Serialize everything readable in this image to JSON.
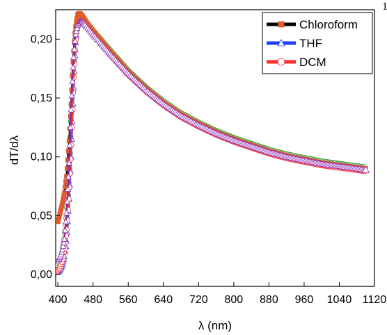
{
  "corner_text": "1",
  "chart_data": {
    "type": "scatter",
    "title": "",
    "xlabel": "λ (nm)",
    "ylabel": "dT/dλ",
    "xlim": [
      395,
      1120
    ],
    "ylim": [
      -0.01,
      0.225
    ],
    "xticks": [
      400,
      480,
      560,
      640,
      720,
      800,
      880,
      960,
      1040,
      1120
    ],
    "yticks": [
      0.0,
      0.05,
      0.1,
      0.15,
      0.2
    ],
    "ytick_labels": [
      "0,00",
      "0,05",
      "0,10",
      "0,15",
      "0,20"
    ],
    "grid": false,
    "legend_position": "top-right",
    "series": [
      {
        "name": "Chloroform",
        "color": "#000000",
        "marker": "square",
        "marker_color": "#e05a2b",
        "points": [
          [
            400,
            0.045
          ],
          [
            405,
            0.052
          ],
          [
            410,
            0.06
          ],
          [
            415,
            0.07
          ],
          [
            420,
            0.085
          ],
          [
            425,
            0.11
          ],
          [
            430,
            0.145
          ],
          [
            435,
            0.185
          ],
          [
            440,
            0.21
          ],
          [
            445,
            0.221
          ],
          [
            450,
            0.222
          ],
          [
            455,
            0.22
          ],
          [
            460,
            0.217
          ],
          [
            480,
            0.207
          ],
          [
            520,
            0.189
          ],
          [
            560,
            0.172
          ],
          [
            600,
            0.158
          ],
          [
            640,
            0.146
          ],
          [
            680,
            0.136
          ],
          [
            720,
            0.128
          ],
          [
            760,
            0.121
          ],
          [
            800,
            0.115
          ],
          [
            840,
            0.11
          ],
          [
            880,
            0.105
          ],
          [
            920,
            0.101
          ],
          [
            960,
            0.098
          ],
          [
            1000,
            0.095
          ],
          [
            1040,
            0.093
          ],
          [
            1080,
            0.091
          ],
          [
            1100,
            0.09
          ]
        ]
      },
      {
        "name": "THF",
        "color": "#1f3fff",
        "marker": "triangle",
        "marker_color": "#ffffff",
        "points": [
          [
            400,
            0.002
          ],
          [
            405,
            0.004
          ],
          [
            410,
            0.008
          ],
          [
            415,
            0.015
          ],
          [
            420,
            0.03
          ],
          [
            425,
            0.06
          ],
          [
            430,
            0.1
          ],
          [
            435,
            0.15
          ],
          [
            440,
            0.195
          ],
          [
            445,
            0.215
          ],
          [
            450,
            0.22
          ],
          [
            455,
            0.219
          ],
          [
            460,
            0.216
          ],
          [
            480,
            0.206
          ],
          [
            520,
            0.188
          ],
          [
            560,
            0.171
          ],
          [
            600,
            0.157
          ],
          [
            640,
            0.145
          ],
          [
            680,
            0.135
          ],
          [
            720,
            0.127
          ],
          [
            760,
            0.12
          ],
          [
            800,
            0.114
          ],
          [
            840,
            0.109
          ],
          [
            880,
            0.104
          ],
          [
            920,
            0.1
          ],
          [
            960,
            0.097
          ],
          [
            1000,
            0.094
          ],
          [
            1040,
            0.092
          ],
          [
            1080,
            0.09
          ],
          [
            1100,
            0.089
          ]
        ]
      },
      {
        "name": "DCM",
        "color": "#ff2a2a",
        "marker": "circle",
        "marker_color": "#ffffff",
        "points": [
          [
            400,
            0.003
          ],
          [
            405,
            0.006
          ],
          [
            410,
            0.012
          ],
          [
            415,
            0.022
          ],
          [
            420,
            0.04
          ],
          [
            425,
            0.07
          ],
          [
            430,
            0.11
          ],
          [
            435,
            0.16
          ],
          [
            440,
            0.198
          ],
          [
            445,
            0.214
          ],
          [
            450,
            0.218
          ],
          [
            455,
            0.218
          ],
          [
            460,
            0.215
          ],
          [
            480,
            0.205
          ],
          [
            520,
            0.187
          ],
          [
            560,
            0.17
          ],
          [
            600,
            0.156
          ],
          [
            640,
            0.144
          ],
          [
            680,
            0.134
          ],
          [
            720,
            0.126
          ],
          [
            760,
            0.119
          ],
          [
            800,
            0.113
          ],
          [
            840,
            0.108
          ],
          [
            880,
            0.103
          ],
          [
            920,
            0.099
          ],
          [
            960,
            0.096
          ],
          [
            1000,
            0.093
          ],
          [
            1040,
            0.091
          ],
          [
            1080,
            0.089
          ],
          [
            1100,
            0.088
          ]
        ]
      },
      {
        "name": "",
        "color": "#2e9e2e",
        "marker": "circle",
        "marker_color": "#ffffff",
        "points": [
          [
            400,
            0.008
          ],
          [
            405,
            0.012
          ],
          [
            410,
            0.018
          ],
          [
            415,
            0.03
          ],
          [
            420,
            0.05
          ],
          [
            425,
            0.085
          ],
          [
            430,
            0.13
          ],
          [
            435,
            0.175
          ],
          [
            440,
            0.205
          ],
          [
            445,
            0.216
          ],
          [
            450,
            0.218
          ],
          [
            455,
            0.218
          ],
          [
            460,
            0.216
          ],
          [
            480,
            0.207
          ],
          [
            520,
            0.19
          ],
          [
            560,
            0.173
          ],
          [
            600,
            0.159
          ],
          [
            640,
            0.147
          ],
          [
            680,
            0.137
          ],
          [
            720,
            0.129
          ],
          [
            760,
            0.122
          ],
          [
            800,
            0.116
          ],
          [
            840,
            0.111
          ],
          [
            880,
            0.106
          ],
          [
            920,
            0.102
          ],
          [
            960,
            0.099
          ],
          [
            1000,
            0.096
          ],
          [
            1040,
            0.094
          ],
          [
            1080,
            0.092
          ],
          [
            1100,
            0.091
          ]
        ]
      },
      {
        "name": "",
        "color": "#8e2fae",
        "marker": "triangle",
        "marker_color": "#ffffff",
        "points": [
          [
            400,
            0.012
          ],
          [
            405,
            0.015
          ],
          [
            410,
            0.02
          ],
          [
            415,
            0.03
          ],
          [
            420,
            0.055
          ],
          [
            425,
            0.09
          ],
          [
            430,
            0.14
          ],
          [
            435,
            0.18
          ],
          [
            440,
            0.203
          ],
          [
            445,
            0.212
          ],
          [
            450,
            0.215
          ],
          [
            455,
            0.215
          ],
          [
            460,
            0.213
          ],
          [
            480,
            0.204
          ],
          [
            520,
            0.187
          ],
          [
            560,
            0.171
          ],
          [
            600,
            0.157
          ],
          [
            640,
            0.145
          ],
          [
            680,
            0.135
          ],
          [
            720,
            0.127
          ],
          [
            760,
            0.12
          ],
          [
            800,
            0.114
          ],
          [
            840,
            0.109
          ],
          [
            880,
            0.104
          ],
          [
            920,
            0.1
          ],
          [
            960,
            0.097
          ],
          [
            1000,
            0.094
          ],
          [
            1040,
            0.092
          ],
          [
            1080,
            0.09
          ],
          [
            1100,
            0.089
          ]
        ]
      }
    ]
  }
}
